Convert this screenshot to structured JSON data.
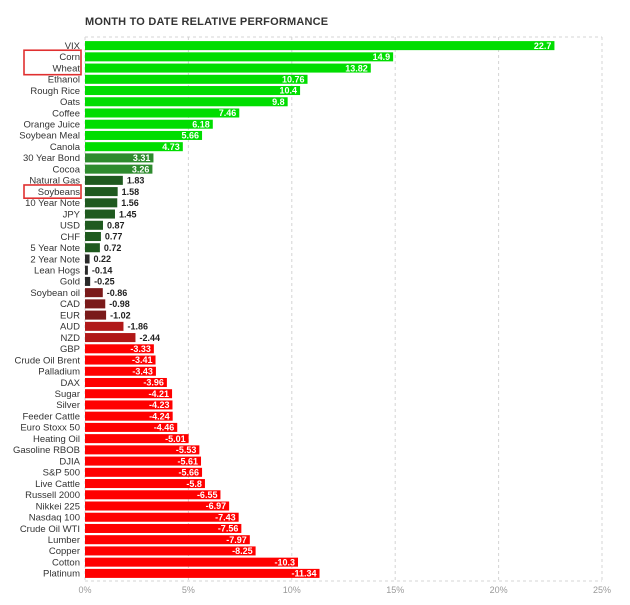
{
  "chart_data": {
    "type": "bar",
    "orientation": "horizontal",
    "title": "MONTH TO DATE RELATIVE PERFORMANCE",
    "xlim": [
      0,
      25
    ],
    "x_ticks": [
      "0%",
      "5%",
      "10%",
      "15%",
      "20%",
      "25%"
    ],
    "grid": true,
    "highlighted": [
      "Corn",
      "Wheat",
      "Soybeans"
    ],
    "categories": [
      "VIX",
      "Corn",
      "Wheat",
      "Ethanol",
      "Rough Rice",
      "Oats",
      "Coffee",
      "Orange Juice",
      "Soybean Meal",
      "Canola",
      "30 Year Bond",
      "Cocoa",
      "Natural Gas",
      "Soybeans",
      "10 Year Note",
      "JPY",
      "USD",
      "CHF",
      "5 Year Note",
      "2 Year Note",
      "Lean Hogs",
      "Gold",
      "Soybean oil",
      "CAD",
      "EUR",
      "AUD",
      "NZD",
      "GBP",
      "Crude Oil Brent",
      "Palladium",
      "DAX",
      "Sugar",
      "Silver",
      "Feeder Cattle",
      "Euro Stoxx 50",
      "Heating Oil",
      "Gasoline RBOB",
      "DJIA",
      "S&P 500",
      "Live Cattle",
      "Russell 2000",
      "Nikkei 225",
      "Nasdaq 100",
      "Crude Oil WTI",
      "Lumber",
      "Copper",
      "Cotton",
      "Platinum"
    ],
    "values": [
      22.7,
      14.9,
      13.82,
      10.76,
      10.4,
      9.8,
      7.46,
      6.18,
      5.66,
      4.73,
      3.31,
      3.26,
      1.83,
      1.58,
      1.56,
      1.45,
      0.87,
      0.77,
      0.72,
      0.22,
      -0.14,
      -0.25,
      -0.86,
      -0.98,
      -1.02,
      -1.86,
      -2.44,
      -3.33,
      -3.41,
      -3.43,
      -3.96,
      -4.21,
      -4.23,
      -4.24,
      -4.46,
      -5.01,
      -5.53,
      -5.61,
      -5.66,
      -5.8,
      -6.55,
      -6.97,
      -7.43,
      -7.56,
      -7.97,
      -8.25,
      -10.3,
      -11.34
    ],
    "value_labels": [
      "22.7",
      "14.9",
      "13.82",
      "10.76",
      "10.4",
      "9.8",
      "7.46",
      "6.18",
      "5.66",
      "4.73",
      "3.31",
      "3.26",
      "1.83",
      "1.58",
      "1.56",
      "1.45",
      "0.87",
      "0.77",
      "0.72",
      "0.22",
      "-0.14",
      "-0.25",
      "-0.86",
      "-0.98",
      "-1.02",
      "-1.86",
      "-2.44",
      "-3.33",
      "-3.41",
      "-3.43",
      "-3.96",
      "-4.21",
      "-4.23",
      "-4.24",
      "-4.46",
      "-5.01",
      "-5.53",
      "-5.61",
      "-5.66",
      "-5.8",
      "-6.55",
      "-6.97",
      "-7.43",
      "-7.56",
      "-7.97",
      "-8.25",
      "-10.3",
      "-11.34"
    ],
    "colors": {
      "strong_positive": "#00dd00",
      "mid_positive": "#2e8b2e",
      "weak_positive": "#1f5a1f",
      "near_zero": "#2a2a2a",
      "weak_negative": "#7a1a1a",
      "mid_negative": "#b01818",
      "strong_negative": "#ff0000",
      "highlight_box": "#e03030",
      "grid": "#d4d4d4"
    }
  }
}
